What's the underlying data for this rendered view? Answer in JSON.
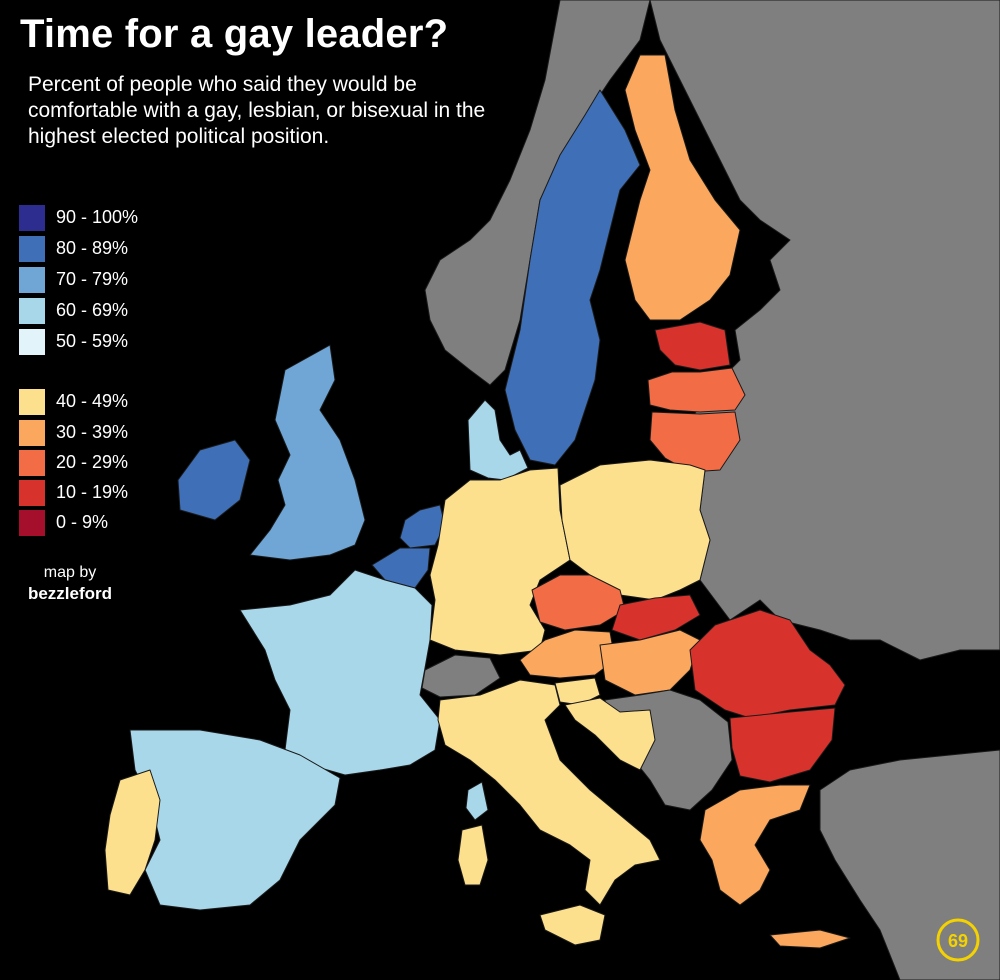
{
  "header": {
    "title": "Time for a gay leader?",
    "subtitle": "Percent of people who said they would be comfortable with a gay, lesbian, or bisexual in the highest elected political position."
  },
  "legend": {
    "items": [
      {
        "label": "90 - 100%",
        "color": "#2c2d8f"
      },
      {
        "label": "80 - 89%",
        "color": "#3f6fb6"
      },
      {
        "label": "70 - 79%",
        "color": "#6fa6d6"
      },
      {
        "label": "60 - 69%",
        "color": "#a8d7ea"
      },
      {
        "label": "50 - 59%",
        "color": "#e2f4f9"
      },
      {
        "label": "40 - 49%",
        "color": "#fde08e"
      },
      {
        "label": "30 - 39%",
        "color": "#fba75d"
      },
      {
        "label": "20 - 29%",
        "color": "#f26c45"
      },
      {
        "label": "10 - 19%",
        "color": "#d7322b"
      },
      {
        "label": "0 - 9%",
        "color": "#a50f2c"
      }
    ]
  },
  "credit": {
    "line1": "map by",
    "author": "bezzleford"
  },
  "colors": {
    "background": "#000000",
    "non_eu": "#7f7f7f",
    "logo": "#f4d100"
  },
  "map": {
    "regions": [
      {
        "id": "sweden",
        "color": "#3f6fb6"
      },
      {
        "id": "finland",
        "color": "#fba75d"
      },
      {
        "id": "norway",
        "color": "#7f7f7f"
      },
      {
        "id": "ireland",
        "color": "#3f6fb6"
      },
      {
        "id": "uk",
        "color": "#6fa6d6"
      },
      {
        "id": "netherlands",
        "color": "#3f6fb6"
      },
      {
        "id": "belgium",
        "color": "#3f6fb6"
      },
      {
        "id": "denmark",
        "color": "#a8d7ea"
      },
      {
        "id": "estonia",
        "color": "#d7322b"
      },
      {
        "id": "latvia",
        "color": "#f26c45"
      },
      {
        "id": "lithuania",
        "color": "#f26c45"
      },
      {
        "id": "germany",
        "color": "#fde08e"
      },
      {
        "id": "poland",
        "color": "#fde08e"
      },
      {
        "id": "czechia",
        "color": "#f26c45"
      },
      {
        "id": "slovakia",
        "color": "#d7322b"
      },
      {
        "id": "austria",
        "color": "#fba75d"
      },
      {
        "id": "hungary",
        "color": "#fba75d"
      },
      {
        "id": "romania",
        "color": "#d7322b"
      },
      {
        "id": "bulgaria",
        "color": "#d7322b"
      },
      {
        "id": "france",
        "color": "#a8d7ea"
      },
      {
        "id": "spain",
        "color": "#a8d7ea"
      },
      {
        "id": "portugal",
        "color": "#fde08e"
      },
      {
        "id": "italy",
        "color": "#fde08e"
      },
      {
        "id": "slovenia",
        "color": "#fde08e"
      },
      {
        "id": "croatia",
        "color": "#fde08e"
      },
      {
        "id": "greece",
        "color": "#fba75d"
      },
      {
        "id": "switzerland",
        "color": "#7f7f7f"
      },
      {
        "id": "balkans",
        "color": "#7f7f7f"
      },
      {
        "id": "east",
        "color": "#7f7f7f"
      },
      {
        "id": "turkey",
        "color": "#7f7f7f"
      }
    ]
  }
}
